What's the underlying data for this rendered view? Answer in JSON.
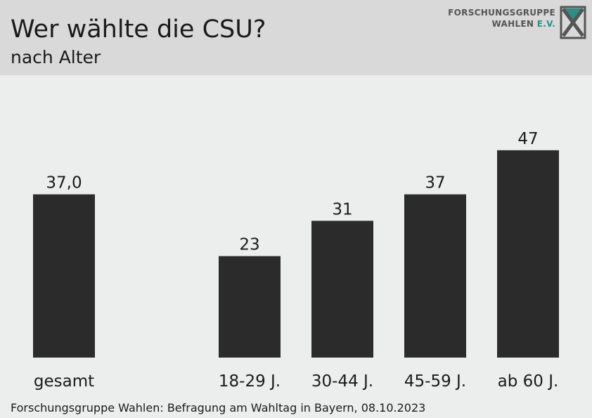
{
  "header": {
    "title": "Wer wählte die CSU?",
    "subtitle": "nach Alter",
    "logo": {
      "line1": "FORSCHUNGSGRUPPE",
      "line2": "WAHLEN",
      "line2_accent": "E.V.",
      "mark": "x-logo-icon"
    }
  },
  "footer": {
    "source": "Forschungsgruppe Wahlen: Befragung am Wahltag in Bayern, 08.10.2023"
  },
  "colors": {
    "bar": "#2b2b2b",
    "background": "#ebeeed",
    "header": "#d9d9d9",
    "accent": "#2d8f84"
  },
  "chart_data": {
    "type": "bar",
    "title": "Wer wählte die CSU?",
    "subtitle": "nach Alter",
    "xlabel": "",
    "ylabel": "",
    "ylim": [
      0,
      47
    ],
    "grid": false,
    "legend": "none",
    "categories": [
      "gesamt",
      "18-29 J.",
      "30-44 J.",
      "45-59 J.",
      "ab 60 J."
    ],
    "values": [
      37.0,
      23,
      31,
      37,
      47
    ],
    "labels": [
      "37,0",
      "23",
      "31",
      "37",
      "47"
    ]
  }
}
